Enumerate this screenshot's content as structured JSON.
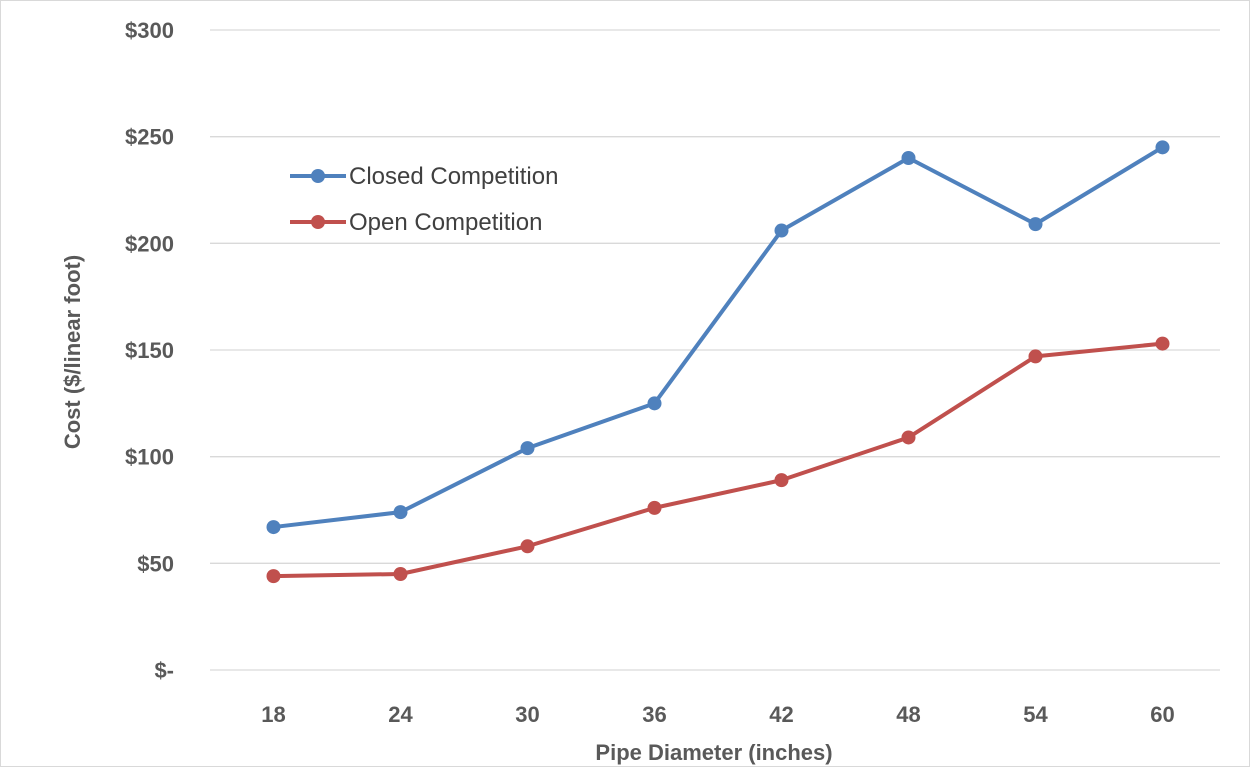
{
  "chart_data": {
    "type": "line",
    "title": "",
    "xlabel": "Pipe Diameter (inches)",
    "ylabel": "Cost ($/linear foot)",
    "categories": [
      "18",
      "24",
      "30",
      "36",
      "42",
      "48",
      "54",
      "60"
    ],
    "ylim": [
      0,
      300
    ],
    "y_ticks": [
      0,
      50,
      100,
      150,
      200,
      250,
      300
    ],
    "y_tick_labels": [
      "$-",
      "$50",
      "$100",
      "$150",
      "$200",
      "$250",
      "$300"
    ],
    "grid": true,
    "legend_position": "top-left",
    "series": [
      {
        "name": "Closed Competition",
        "color": "#4f81bd",
        "values": [
          67,
          74,
          104,
          125,
          206,
          240,
          209,
          245
        ]
      },
      {
        "name": "Open Competition",
        "color": "#c0504d",
        "values": [
          44,
          45,
          58,
          76,
          89,
          109,
          147,
          153
        ]
      }
    ]
  }
}
